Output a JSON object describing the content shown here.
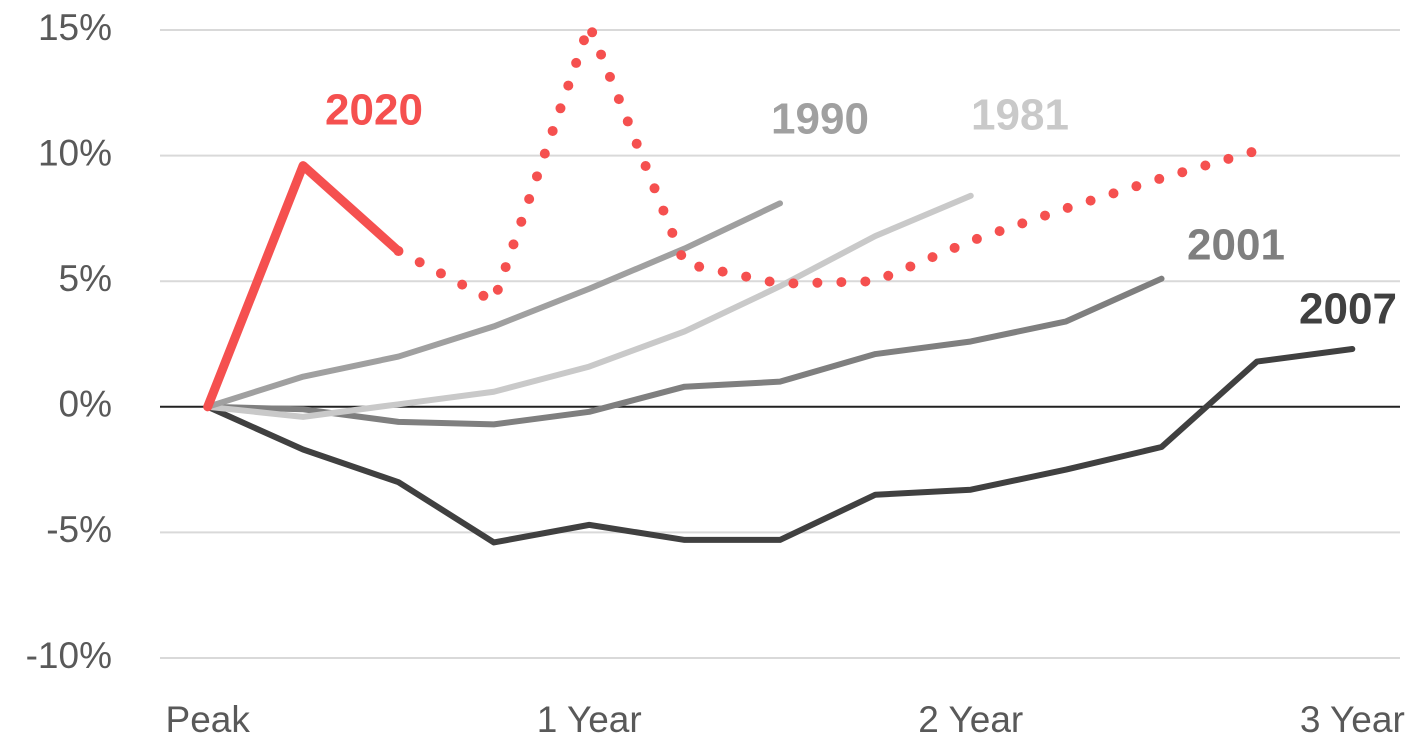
{
  "chart_data": {
    "type": "line",
    "x": [
      0,
      0.25,
      0.5,
      0.75,
      1,
      1.25,
      1.5,
      1.75,
      2,
      2.25,
      2.5,
      2.75,
      3
    ],
    "xlim": [
      -0.125,
      3.125
    ],
    "xticks": [
      {
        "value": 0,
        "label": "Peak"
      },
      {
        "value": 1,
        "label": "1 Year"
      },
      {
        "value": 2,
        "label": "2 Year"
      },
      {
        "value": 3,
        "label": "3 Year"
      }
    ],
    "ylim": [
      -10,
      15
    ],
    "yticks": [
      {
        "value": -10,
        "label": "-10%"
      },
      {
        "value": -5,
        "label": "-5%"
      },
      {
        "value": 0,
        "label": "0%"
      },
      {
        "value": 5,
        "label": "5%"
      },
      {
        "value": 10,
        "label": "10%"
      },
      {
        "value": 15,
        "label": "15%"
      }
    ],
    "grid": true,
    "series": [
      {
        "name": "2007",
        "color": "#404040",
        "values": [
          0,
          -1.7,
          -3.0,
          -5.4,
          -4.7,
          -5.3,
          -5.3,
          -3.5,
          -3.3,
          -2.5,
          -1.6,
          1.8,
          2.3
        ]
      },
      {
        "name": "2001",
        "color": "#7f7f7f",
        "values": [
          0,
          -0.1,
          -0.6,
          -0.7,
          -0.2,
          0.8,
          1.0,
          2.1,
          2.6,
          3.4,
          5.1,
          null,
          null
        ]
      },
      {
        "name": "1981",
        "color": "#c9c9c9",
        "values": [
          0,
          -0.4,
          0.1,
          0.6,
          1.6,
          3.0,
          4.8,
          6.8,
          8.4,
          null,
          null,
          null,
          null
        ]
      },
      {
        "name": "1990",
        "color": "#a0a0a0",
        "values": [
          0,
          1.2,
          2.0,
          3.2,
          4.7,
          6.3,
          8.1,
          null,
          null,
          null,
          null,
          null,
          null
        ]
      },
      {
        "color": "#f5504f",
        "style": "dotted",
        "values": [
          null,
          null,
          6.2,
          4.2,
          15.2,
          5.7,
          4.9,
          5.0,
          6.6,
          7.9,
          9.1,
          10.2,
          null
        ]
      },
      {
        "name": "2020",
        "color": "#f5504f",
        "values": [
          0,
          9.6,
          6.2,
          null,
          null,
          null,
          null,
          null,
          null,
          null,
          null,
          null,
          null
        ]
      }
    ]
  }
}
